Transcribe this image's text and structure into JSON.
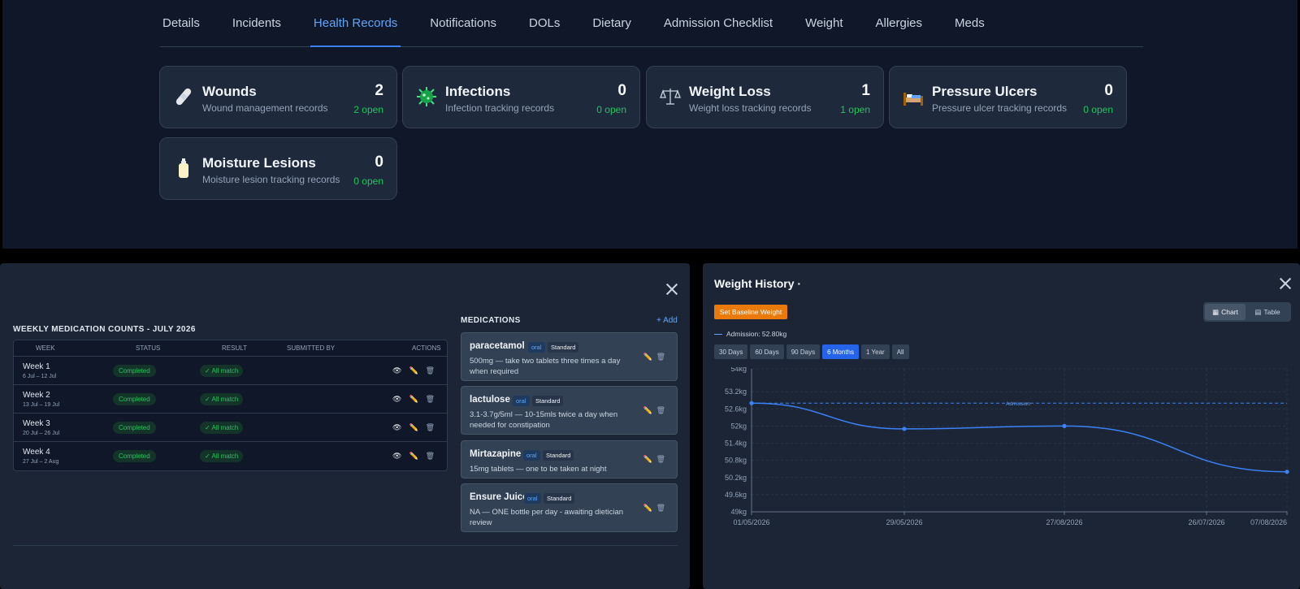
{
  "tabs": [
    "Details",
    "Incidents",
    "Health Records",
    "Notifications",
    "DOLs",
    "Dietary",
    "Admission Checklist",
    "Weight",
    "Allergies",
    "Meds"
  ],
  "active_tab": "Health Records",
  "cards": [
    {
      "title": "Wounds",
      "subtitle": "Wound management records",
      "count": "2",
      "open": "2 open",
      "icon": "bandage-icon"
    },
    {
      "title": "Infections",
      "subtitle": "Infection tracking records",
      "count": "0",
      "open": "0 open",
      "icon": "microbe-icon"
    },
    {
      "title": "Weight Loss",
      "subtitle": "Weight loss tracking records",
      "count": "1",
      "open": "1 open",
      "icon": "scales-icon"
    },
    {
      "title": "Pressure Ulcers",
      "subtitle": "Pressure ulcer tracking records",
      "count": "0",
      "open": "0 open",
      "icon": "bed-icon"
    },
    {
      "title": "Moisture Lesions",
      "subtitle": "Moisture lesion tracking records",
      "count": "0",
      "open": "0 open",
      "icon": "lotion-icon"
    }
  ],
  "weekly": {
    "title": "WEEKLY MEDICATION COUNTS - JULY 2026",
    "columns": [
      "WEEK",
      "STATUS",
      "RESULT",
      "SUBMITTED BY",
      "ACTIONS"
    ],
    "rows": [
      {
        "week": "Week 1",
        "range": "6 Jul – 12 Jul",
        "status": "Completed",
        "result": "✓ All match",
        "submitted_by": ""
      },
      {
        "week": "Week 2",
        "range": "13 Jul – 19 Jul",
        "status": "Completed",
        "result": "✓ All match",
        "submitted_by": ""
      },
      {
        "week": "Week 3",
        "range": "20 Jul – 26 Jul",
        "status": "Completed",
        "result": "✓ All match",
        "submitted_by": ""
      },
      {
        "week": "Week 4",
        "range": "27 Jul – 2 Aug",
        "status": "Completed",
        "result": "✓ All match",
        "submitted_by": ""
      }
    ]
  },
  "medications": {
    "title": "MEDICATIONS",
    "add_label": "+ Add",
    "items": [
      {
        "name": "paracetamol",
        "route": "oral",
        "type": "Standard",
        "desc": "500mg — take two tablets three times a day when required"
      },
      {
        "name": "lactulose",
        "route": "oral",
        "type": "Standard",
        "desc": "3.1-3.7g/5ml — 10-15mls twice a day when needed for constipation"
      },
      {
        "name": "Mirtazapine",
        "route": "oral",
        "type": "Standard",
        "desc": "15mg tablets — one to be taken at night"
      },
      {
        "name": "Ensure Juice",
        "route": "oral",
        "type": "Standard",
        "desc": "NA — ONE bottle per day - awaiting dietician review"
      }
    ]
  },
  "weight": {
    "title": "Weight History ·",
    "baseline_label": "Set Baseline Weight",
    "view_chart": "Chart",
    "view_table": "Table",
    "admission_legend": "Admission: 52.80kg",
    "ranges": [
      "30 Days",
      "60 Days",
      "90 Days",
      "6 Months",
      "1 Year",
      "All"
    ],
    "active_range": "6 Months"
  },
  "chart_data": {
    "type": "line",
    "title": "",
    "xlabel": "",
    "ylabel": "",
    "y_ticks": [
      "54kg",
      "53.2kg",
      "52.6kg",
      "52kg",
      "51.4kg",
      "50.8kg",
      "50.2kg",
      "49.6kg",
      "49kg"
    ],
    "x_ticks": [
      "01/05/2026",
      "29/05/2026",
      "27/08/2026",
      "26/07/2026",
      "07/08/2026"
    ],
    "ylim": [
      49,
      54
    ],
    "series": [
      {
        "points": [
          {
            "x": "01/05/2026",
            "y": 52.8
          },
          {
            "x": "29/05/2026",
            "y": 51.9
          },
          {
            "x": "27/08/2026",
            "y": 52.0
          },
          {
            "x": "07/08/2026",
            "y": 50.4
          }
        ]
      }
    ],
    "reference_line": {
      "label": "Admission",
      "y": 52.8
    },
    "grid": true
  },
  "colors": {
    "accent": "#3b82f6",
    "green": "#22c55e",
    "orange": "#ea7a0c"
  }
}
